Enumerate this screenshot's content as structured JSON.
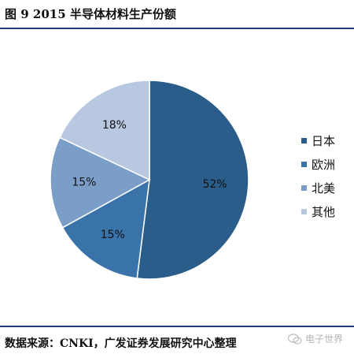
{
  "header": {
    "title": "图 9 2015 半导体材料生产份额"
  },
  "footer": {
    "source": "数据来源：CNKI，广发证券发展研究中心整理",
    "watermark": "电子世界",
    "watermark_icon": "wechat-icon"
  },
  "chart_data": {
    "type": "pie",
    "title": "2015 半导体材料生产份额",
    "slices": [
      {
        "label": "日本",
        "value": 52,
        "text": "52%",
        "color": "#2a5d8a"
      },
      {
        "label": "欧洲",
        "value": 15,
        "text": "15%",
        "color": "#3a72aa"
      },
      {
        "label": "北美",
        "value": 15,
        "text": "15%",
        "color": "#7b9ec9"
      },
      {
        "label": "其他",
        "value": 18,
        "text": "18%",
        "color": "#b8c8e0"
      }
    ],
    "legend_position": "right",
    "start_angle_deg": 0,
    "direction": "clockwise"
  }
}
